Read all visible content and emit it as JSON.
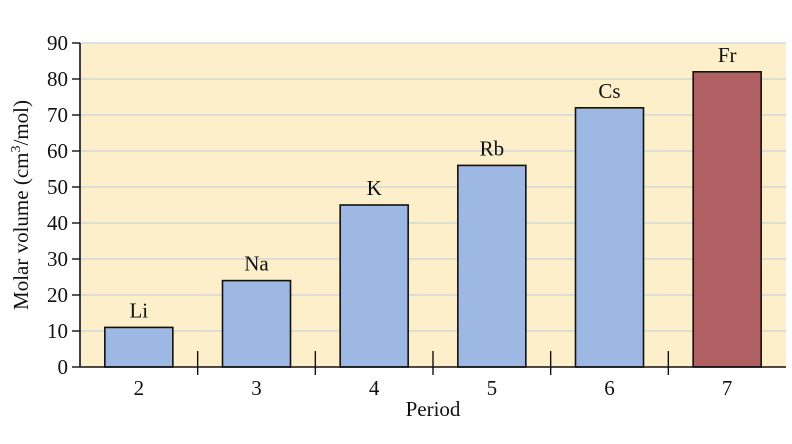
{
  "chart_data": {
    "type": "bar",
    "categories": [
      "2",
      "3",
      "4",
      "5",
      "6",
      "7"
    ],
    "bar_labels": [
      "Li",
      "Na",
      "K",
      "Rb",
      "Cs",
      "Fr"
    ],
    "values": [
      11,
      24,
      45,
      56,
      72,
      82
    ],
    "highlight_index": 5,
    "xlabel": "Period",
    "ylabel_main": "Molar volume (cm",
    "ylabel_sup": "3",
    "ylabel_tail": "/mol)",
    "ylim": [
      0,
      90
    ],
    "yticks": [
      0,
      10,
      20,
      30,
      40,
      50,
      60,
      70,
      80,
      90
    ],
    "grid": true,
    "colors": {
      "plot_background": "#fcefc9",
      "gridline": "#c9d3dd",
      "bar": "#9db8e2",
      "highlight_bar": "#b05f62",
      "bar_edge": "#111111",
      "axis": "#111111"
    }
  }
}
